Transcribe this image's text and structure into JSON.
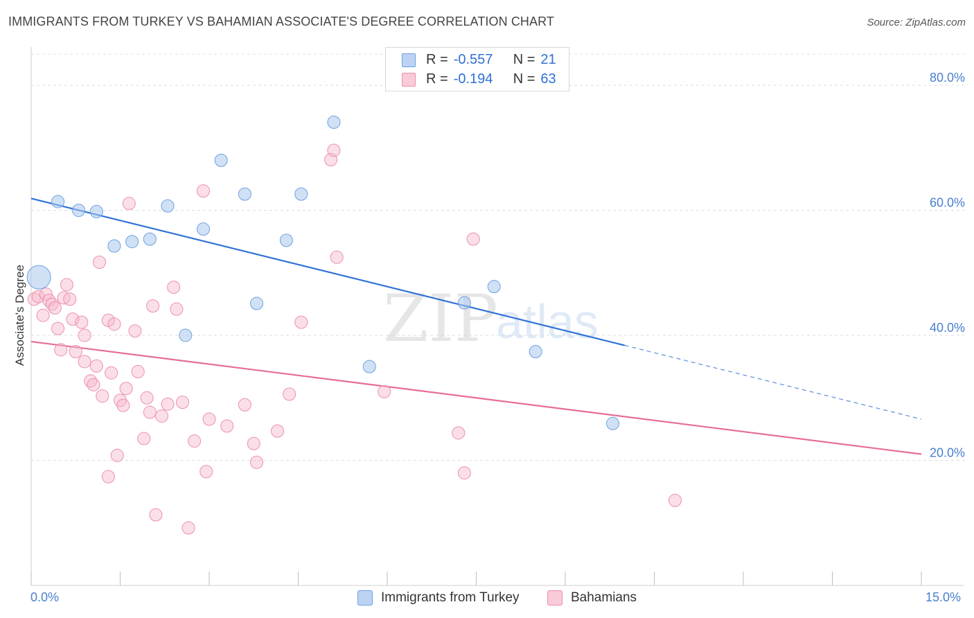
{
  "title": "IMMIGRANTS FROM TURKEY VS BAHAMIAN ASSOCIATE'S DEGREE CORRELATION CHART",
  "source": "Source: ZipAtlas.com",
  "watermark": {
    "zip": "ZIP",
    "atlas": "atlas"
  },
  "colors": {
    "blue": "#a9c8ef",
    "blue_stroke": "#6f9fe0",
    "blue_line": "#2f72d6",
    "pink": "#f6b9cb",
    "pink_stroke": "#ec8fab",
    "pink_line": "#e86c95",
    "accent_text": "#2f6fd6"
  },
  "legend": {
    "rows": [
      {
        "r_label": "R =",
        "r_value": "-0.557",
        "n_label": "N =",
        "n_value": "21"
      },
      {
        "r_label": "R =",
        "r_value": "-0.194",
        "n_label": "N =",
        "n_value": "63"
      }
    ]
  },
  "bottom_legend": {
    "series1": "Immigrants from Turkey",
    "series2": "Bahamians"
  },
  "chart_data": {
    "type": "scatter",
    "title": "IMMIGRANTS FROM TURKEY VS BAHAMIAN ASSOCIATE'S DEGREE CORRELATION CHART",
    "xlabel": "",
    "ylabel": "Associate's Degree",
    "xlim": [
      0,
      15
    ],
    "ylim": [
      0,
      85
    ],
    "x_tick_labels": [
      "0.0%",
      "15.0%"
    ],
    "y_ticks": [
      20,
      40,
      60,
      80
    ],
    "y_tick_labels": [
      "20.0%",
      "40.0%",
      "60.0%",
      "80.0%"
    ],
    "grid": true,
    "legend_position": "top-center",
    "series": [
      {
        "name": "Immigrants from Turkey",
        "r": -0.557,
        "n": 21,
        "trend": {
          "x0": 0,
          "y0": 61.9,
          "x1": 10.0,
          "y1": 38.4,
          "dash_to_x": 15,
          "dash_to_y": 26.6
        },
        "points": [
          [
            0.13,
            49.3,
            "large"
          ],
          [
            0.45,
            61.4
          ],
          [
            0.8,
            60.0
          ],
          [
            1.1,
            59.8
          ],
          [
            1.4,
            54.3
          ],
          [
            1.7,
            55.0
          ],
          [
            2.0,
            55.4
          ],
          [
            2.3,
            60.7
          ],
          [
            2.9,
            57.0
          ],
          [
            3.2,
            68.0
          ],
          [
            3.6,
            62.6
          ],
          [
            3.8,
            45.1
          ],
          [
            4.3,
            55.2
          ],
          [
            4.55,
            62.6
          ],
          [
            5.1,
            74.1
          ],
          [
            5.7,
            35.0
          ],
          [
            7.3,
            45.2
          ],
          [
            7.8,
            47.8
          ],
          [
            8.5,
            37.4
          ],
          [
            9.8,
            25.9
          ],
          [
            2.6,
            40.0
          ]
        ]
      },
      {
        "name": "Bahamians",
        "r": -0.194,
        "n": 63,
        "trend": {
          "x0": 0,
          "y0": 39.0,
          "x1": 15,
          "y1": 21.0
        },
        "points": [
          [
            0.05,
            45.8
          ],
          [
            0.12,
            46.2
          ],
          [
            0.2,
            43.2
          ],
          [
            0.25,
            46.6
          ],
          [
            0.3,
            45.6
          ],
          [
            0.35,
            45.0
          ],
          [
            0.4,
            44.4
          ],
          [
            0.45,
            41.1
          ],
          [
            0.5,
            37.7
          ],
          [
            0.55,
            46.0
          ],
          [
            0.6,
            48.1
          ],
          [
            0.65,
            45.8
          ],
          [
            0.7,
            42.6
          ],
          [
            0.75,
            37.4
          ],
          [
            0.85,
            42.1
          ],
          [
            0.9,
            40.0
          ],
          [
            0.9,
            35.8
          ],
          [
            1.0,
            32.7
          ],
          [
            1.05,
            32.1
          ],
          [
            1.1,
            35.1
          ],
          [
            1.2,
            30.3
          ],
          [
            1.15,
            51.7
          ],
          [
            1.3,
            17.4
          ],
          [
            1.3,
            42.4
          ],
          [
            1.4,
            41.8
          ],
          [
            1.35,
            34.0
          ],
          [
            1.45,
            20.8
          ],
          [
            1.5,
            29.6
          ],
          [
            1.55,
            28.8
          ],
          [
            1.6,
            31.5
          ],
          [
            1.65,
            61.1
          ],
          [
            1.75,
            40.7
          ],
          [
            1.8,
            34.2
          ],
          [
            1.9,
            23.5
          ],
          [
            1.95,
            30.0
          ],
          [
            2.0,
            27.7
          ],
          [
            2.05,
            44.7
          ],
          [
            2.1,
            11.3
          ],
          [
            2.2,
            27.1
          ],
          [
            2.3,
            29.0
          ],
          [
            2.4,
            47.7
          ],
          [
            2.45,
            44.2
          ],
          [
            2.55,
            29.3
          ],
          [
            2.65,
            9.2
          ],
          [
            2.75,
            23.1
          ],
          [
            2.9,
            63.1
          ],
          [
            2.95,
            18.2
          ],
          [
            3.0,
            26.6
          ],
          [
            3.3,
            25.5
          ],
          [
            3.6,
            28.9
          ],
          [
            3.75,
            22.7
          ],
          [
            3.8,
            19.7
          ],
          [
            4.15,
            24.7
          ],
          [
            4.35,
            30.6
          ],
          [
            4.55,
            42.1
          ],
          [
            5.05,
            68.1
          ],
          [
            5.1,
            69.6
          ],
          [
            5.15,
            52.5
          ],
          [
            5.95,
            31.0
          ],
          [
            7.2,
            24.4
          ],
          [
            7.3,
            18.0
          ],
          [
            7.45,
            55.4
          ],
          [
            10.85,
            13.6
          ]
        ]
      }
    ]
  }
}
